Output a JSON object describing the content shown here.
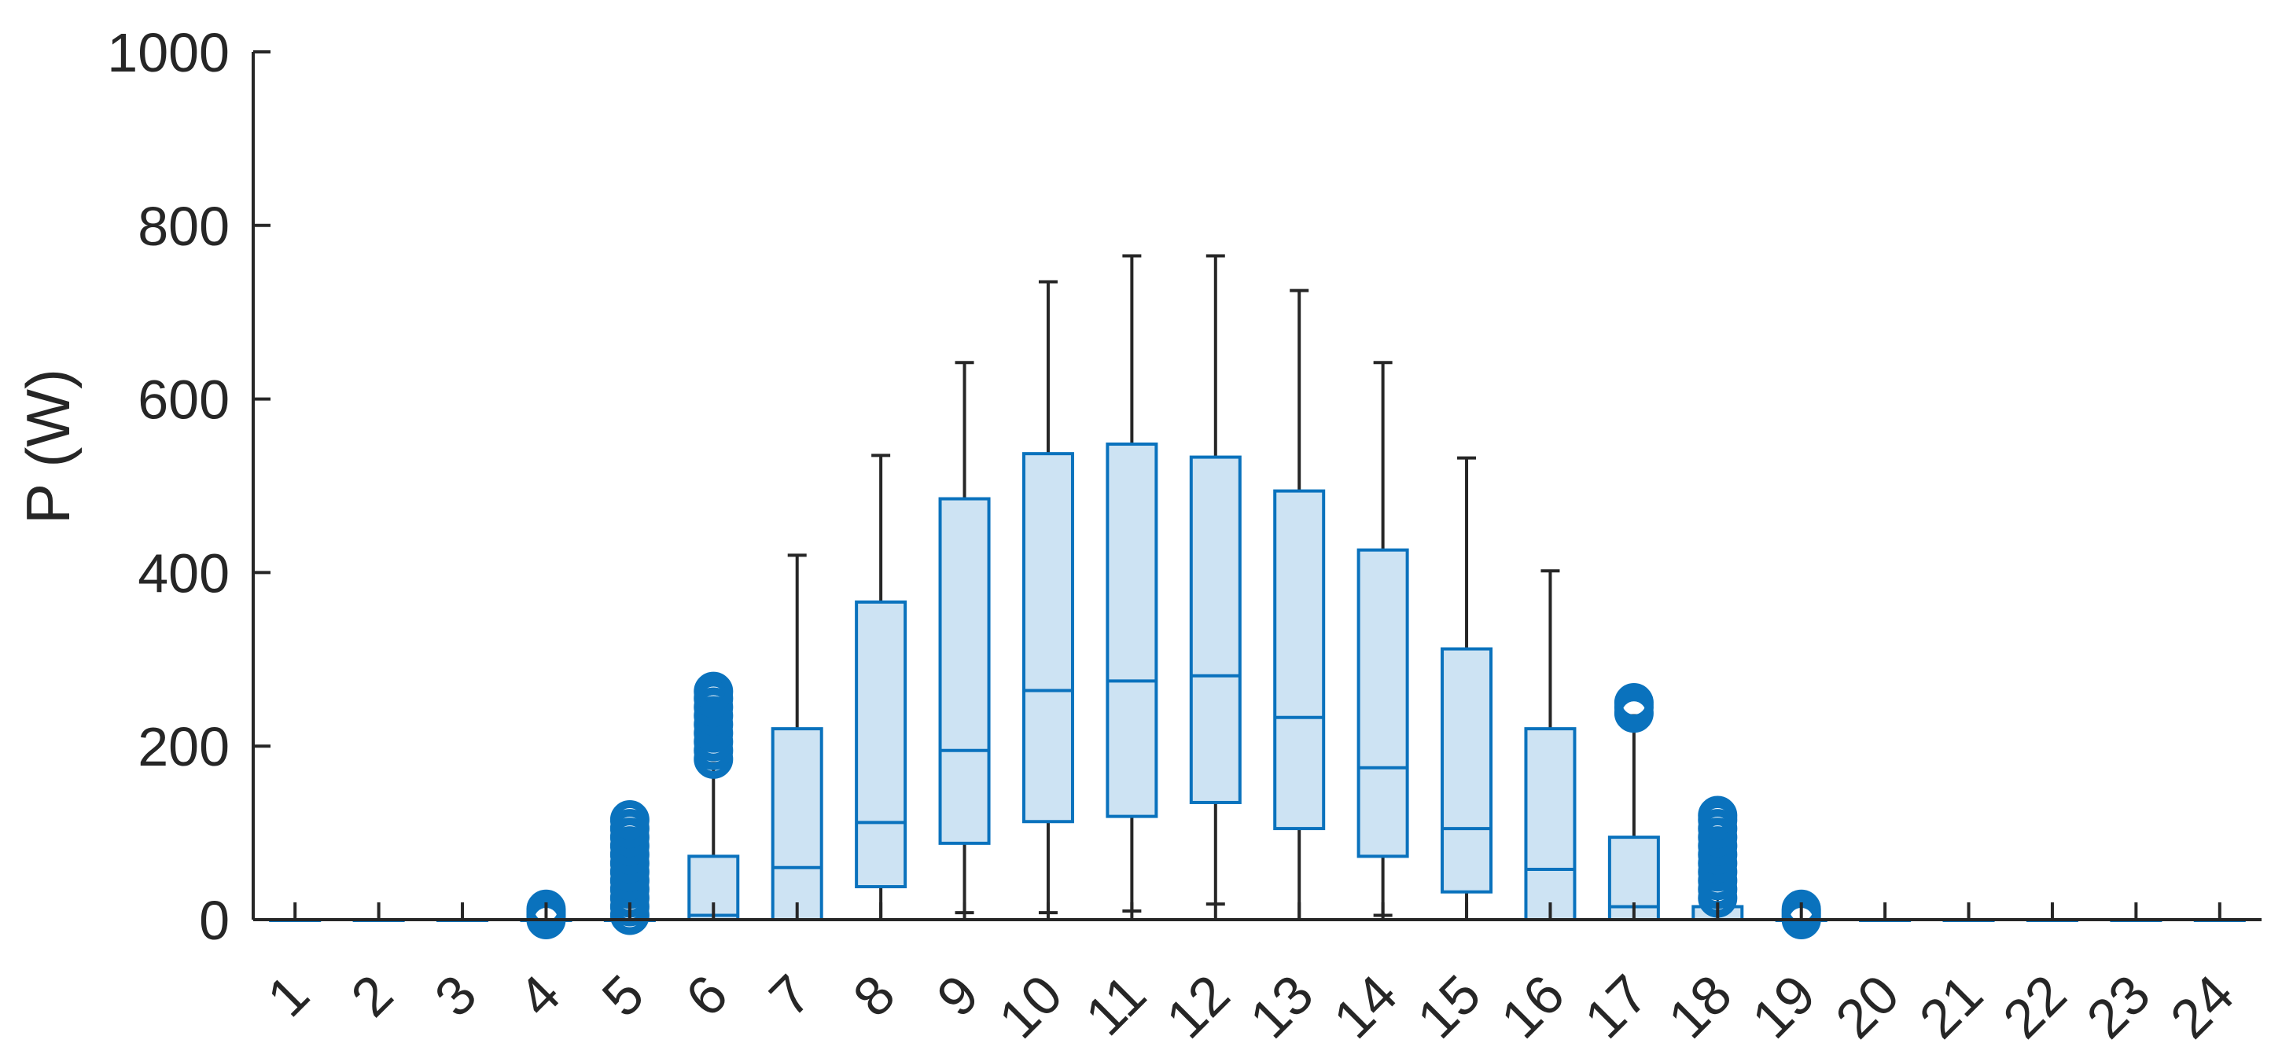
{
  "chart_data": {
    "type": "boxplot",
    "title": "",
    "xlabel": "",
    "ylabel": "P (W)",
    "ylim": [
      0,
      1000
    ],
    "yticks": [
      0,
      200,
      400,
      600,
      800,
      1000
    ],
    "categories": [
      "1",
      "2",
      "3",
      "4",
      "5",
      "6",
      "7",
      "8",
      "9",
      "10",
      "11",
      "12",
      "13",
      "14",
      "15",
      "16",
      "17",
      "18",
      "19",
      "20",
      "21",
      "22",
      "23",
      "24"
    ],
    "grid": false,
    "colors": {
      "box_fill": "#cde3f3",
      "box_edge": "#0a72bd",
      "whisker": "#262626",
      "outlier": "#0a72bd",
      "axis": "#262626"
    },
    "boxes": [
      {
        "category": "1",
        "min": 0,
        "q1": 0,
        "median": 0,
        "q3": 0,
        "max": 0,
        "outliers": []
      },
      {
        "category": "2",
        "min": 0,
        "q1": 0,
        "median": 0,
        "q3": 0,
        "max": 0,
        "outliers": []
      },
      {
        "category": "3",
        "min": 0,
        "q1": 0,
        "median": 0,
        "q3": 0,
        "max": 0,
        "outliers": []
      },
      {
        "category": "4",
        "min": 0,
        "q1": 0,
        "median": 0,
        "q3": 0,
        "max": 0,
        "outliers": [
          0,
          3,
          6,
          9,
          12
        ]
      },
      {
        "category": "5",
        "min": 0,
        "q1": 0,
        "median": 0,
        "q3": 0,
        "max": 0,
        "outliers": [
          5,
          15,
          25,
          35,
          45,
          55,
          65,
          75,
          85,
          95,
          105,
          115
        ]
      },
      {
        "category": "6",
        "min": 0,
        "q1": 0,
        "median": 5,
        "q3": 73,
        "max": 180,
        "outliers": [
          185,
          195,
          205,
          215,
          225,
          235,
          245,
          255,
          263
        ]
      },
      {
        "category": "7",
        "min": 0,
        "q1": 0,
        "median": 60,
        "q3": 220,
        "max": 420,
        "outliers": []
      },
      {
        "category": "8",
        "min": 0,
        "q1": 38,
        "median": 112,
        "q3": 366,
        "max": 535,
        "outliers": []
      },
      {
        "category": "9",
        "min": 8,
        "q1": 88,
        "median": 195,
        "q3": 485,
        "max": 642,
        "outliers": []
      },
      {
        "category": "10",
        "min": 8,
        "q1": 113,
        "median": 264,
        "q3": 537,
        "max": 735,
        "outliers": []
      },
      {
        "category": "11",
        "min": 10,
        "q1": 119,
        "median": 275,
        "q3": 548,
        "max": 765,
        "outliers": []
      },
      {
        "category": "12",
        "min": 18,
        "q1": 135,
        "median": 281,
        "q3": 533,
        "max": 765,
        "outliers": []
      },
      {
        "category": "13",
        "min": 0,
        "q1": 105,
        "median": 233,
        "q3": 494,
        "max": 725,
        "outliers": []
      },
      {
        "category": "14",
        "min": 5,
        "q1": 73,
        "median": 175,
        "q3": 426,
        "max": 642,
        "outliers": []
      },
      {
        "category": "15",
        "min": 0,
        "q1": 32,
        "median": 105,
        "q3": 312,
        "max": 532,
        "outliers": []
      },
      {
        "category": "16",
        "min": 0,
        "q1": 0,
        "median": 58,
        "q3": 220,
        "max": 402,
        "outliers": []
      },
      {
        "category": "17",
        "min": 0,
        "q1": 0,
        "median": 15,
        "q3": 95,
        "max": 235,
        "outliers": [
          238,
          245,
          250
        ]
      },
      {
        "category": "18",
        "min": 0,
        "q1": 0,
        "median": 0,
        "q3": 15,
        "max": 15,
        "outliers": [
          25,
          35,
          45,
          55,
          65,
          75,
          85,
          95,
          105,
          115,
          120
        ]
      },
      {
        "category": "19",
        "min": 0,
        "q1": 0,
        "median": 0,
        "q3": 0,
        "max": 0,
        "outliers": [
          0,
          3,
          6,
          9,
          12
        ]
      },
      {
        "category": "20",
        "min": 0,
        "q1": 0,
        "median": 0,
        "q3": 0,
        "max": 0,
        "outliers": []
      },
      {
        "category": "21",
        "min": 0,
        "q1": 0,
        "median": 0,
        "q3": 0,
        "max": 0,
        "outliers": []
      },
      {
        "category": "22",
        "min": 0,
        "q1": 0,
        "median": 0,
        "q3": 0,
        "max": 0,
        "outliers": []
      },
      {
        "category": "23",
        "min": 0,
        "q1": 0,
        "median": 0,
        "q3": 0,
        "max": 0,
        "outliers": []
      },
      {
        "category": "24",
        "min": 0,
        "q1": 0,
        "median": 0,
        "q3": 0,
        "max": 0,
        "outliers": []
      }
    ]
  }
}
